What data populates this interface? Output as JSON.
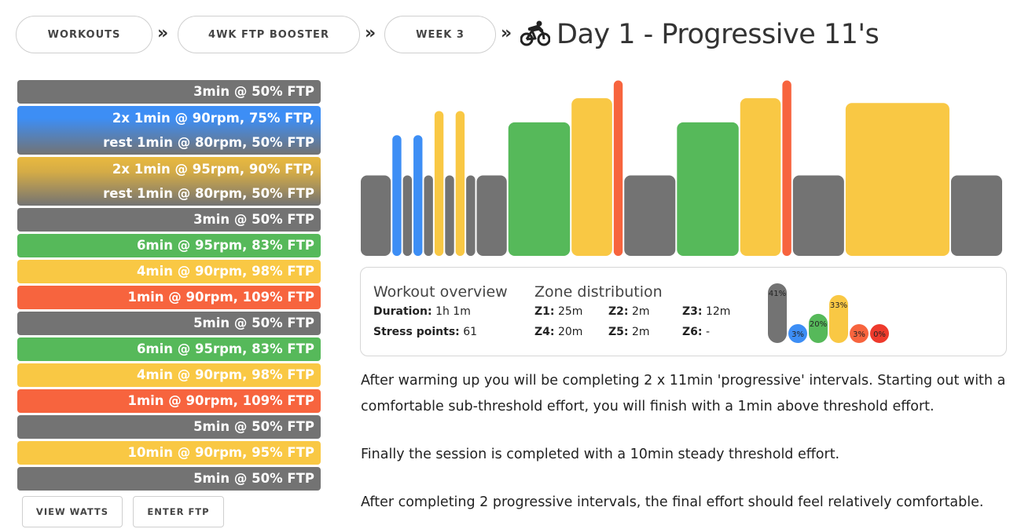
{
  "breadcrumb": {
    "items": [
      "WORKOUTS",
      "4WK FTP BOOSTER",
      "WEEK 3"
    ],
    "separator": "»"
  },
  "title": "Day 1 - Progressive 11's",
  "title_icon": "cyclist-icon",
  "colors": {
    "gray": "#737373",
    "blue": "#3d8ef5",
    "green": "#56b95a",
    "yellow": "#f9c844",
    "red": "#f7643e",
    "zone6": "#ee3a2c"
  },
  "intervals": [
    {
      "lines": [
        "3min @ 50% FTP"
      ],
      "color": "gray"
    },
    {
      "lines": [
        "2x 1min @ 90rpm, 75% FTP,",
        "rest 1min @ 80rpm, 50% FTP"
      ],
      "color": "blue-gray"
    },
    {
      "lines": [
        "2x 1min @ 95rpm, 90% FTP,",
        "rest 1min @ 80rpm, 50% FTP"
      ],
      "color": "yellow-gray"
    },
    {
      "lines": [
        "3min @ 50% FTP"
      ],
      "color": "gray"
    },
    {
      "lines": [
        "6min @ 95rpm, 83% FTP"
      ],
      "color": "green"
    },
    {
      "lines": [
        "4min @ 90rpm, 98% FTP"
      ],
      "color": "yellow"
    },
    {
      "lines": [
        "1min @ 90rpm, 109% FTP"
      ],
      "color": "red"
    },
    {
      "lines": [
        "5min @ 50% FTP"
      ],
      "color": "gray"
    },
    {
      "lines": [
        "6min @ 95rpm, 83% FTP"
      ],
      "color": "green"
    },
    {
      "lines": [
        "4min @ 90rpm, 98% FTP"
      ],
      "color": "yellow"
    },
    {
      "lines": [
        "1min @ 90rpm, 109% FTP"
      ],
      "color": "red"
    },
    {
      "lines": [
        "5min @ 50% FTP"
      ],
      "color": "gray"
    },
    {
      "lines": [
        "10min @ 90rpm, 95% FTP"
      ],
      "color": "yellow"
    },
    {
      "lines": [
        "5min @ 50% FTP"
      ],
      "color": "gray"
    }
  ],
  "buttons": {
    "view_watts": "VIEW WATTS",
    "enter_ftp": "ENTER FTP"
  },
  "profile_segments": [
    {
      "min": 3,
      "ftp": 50,
      "color": "gray"
    },
    {
      "min": 1,
      "ftp": 75,
      "color": "blue"
    },
    {
      "min": 1,
      "ftp": 50,
      "color": "gray"
    },
    {
      "min": 1,
      "ftp": 75,
      "color": "blue"
    },
    {
      "min": 1,
      "ftp": 50,
      "color": "gray"
    },
    {
      "min": 1,
      "ftp": 90,
      "color": "yellow"
    },
    {
      "min": 1,
      "ftp": 50,
      "color": "gray"
    },
    {
      "min": 1,
      "ftp": 90,
      "color": "yellow"
    },
    {
      "min": 1,
      "ftp": 50,
      "color": "gray"
    },
    {
      "min": 3,
      "ftp": 50,
      "color": "gray"
    },
    {
      "min": 6,
      "ftp": 83,
      "color": "green"
    },
    {
      "min": 4,
      "ftp": 98,
      "color": "yellow"
    },
    {
      "min": 1,
      "ftp": 109,
      "color": "red"
    },
    {
      "min": 5,
      "ftp": 50,
      "color": "gray"
    },
    {
      "min": 6,
      "ftp": 83,
      "color": "green"
    },
    {
      "min": 4,
      "ftp": 98,
      "color": "yellow"
    },
    {
      "min": 1,
      "ftp": 109,
      "color": "red"
    },
    {
      "min": 5,
      "ftp": 50,
      "color": "gray"
    },
    {
      "min": 10,
      "ftp": 95,
      "color": "yellow"
    },
    {
      "min": 5,
      "ftp": 50,
      "color": "gray"
    }
  ],
  "overview": {
    "heading": "Workout overview",
    "duration_label": "Duration:",
    "duration_value": "1h 1m",
    "stress_label": "Stress points:",
    "stress_value": "61"
  },
  "zones": {
    "heading": "Zone distribution",
    "items": [
      {
        "label": "Z1:",
        "value": "25m"
      },
      {
        "label": "Z2:",
        "value": "2m"
      },
      {
        "label": "Z3:",
        "value": "12m"
      },
      {
        "label": "Z4:",
        "value": "20m"
      },
      {
        "label": "Z5:",
        "value": "2m"
      },
      {
        "label": "Z6:",
        "value": "-"
      }
    ]
  },
  "chart_data": {
    "type": "bar",
    "categories": [
      "Z1",
      "Z2",
      "Z3",
      "Z4",
      "Z5",
      "Z6"
    ],
    "values": [
      41,
      3,
      20,
      33,
      3,
      0
    ],
    "labels": [
      "41%",
      "3%",
      "20%",
      "33%",
      "3%",
      "0%"
    ],
    "colors": [
      "#737373",
      "#3d8ef5",
      "#56b95a",
      "#f9c844",
      "#f7643e",
      "#ee3a2c"
    ],
    "ylim": [
      0,
      41
    ],
    "title": "",
    "xlabel": "",
    "ylabel": ""
  },
  "description": [
    "After warming up you will be completing 2 x 11min 'progressive' intervals. Starting out with a",
    "comfortable sub-threshold effort, you will finish with a 1min above threshold effort.",
    "Finally the session is completed with a 10min steady threshold effort.",
    "After completing 2 progressive intervals, the final effort should feel relatively comfortable."
  ]
}
